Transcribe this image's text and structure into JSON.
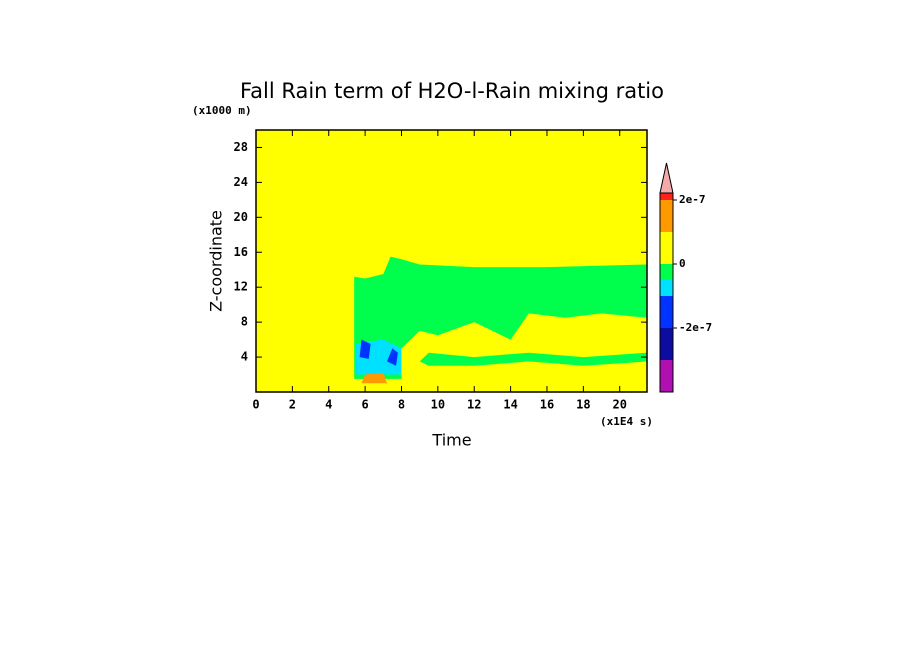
{
  "chart_data": {
    "type": "contour",
    "title": "Fall Rain term of H2O-l-Rain mixing ratio",
    "x_label": "Time",
    "y_label": "Z-coordinate",
    "x_units": "(x1E4 s)",
    "y_units": "(x1000 m)",
    "xlim": [
      0,
      21.5
    ],
    "ylim": [
      0,
      30
    ],
    "xticks": [
      0,
      2,
      4,
      6,
      8,
      10,
      12,
      14,
      16,
      18,
      20
    ],
    "yticks": [
      4,
      8,
      12,
      16,
      20,
      24,
      28
    ],
    "background_band": 5,
    "levels": [
      -3e-07,
      -2e-07,
      -1e-07,
      -5e-08,
      0,
      1e-07,
      2e-07
    ],
    "colors": [
      "#b010b0",
      "#0c0ca0",
      "#0033ff",
      "#00e0ff",
      "#00ff4c",
      "#ffff00",
      "#ff9900",
      "#ff2020"
    ],
    "extend_color": "#f4aaa8",
    "colorbar_ticks": [
      {
        "value": 2e-07,
        "label": "2e-7"
      },
      0,
      {
        "value": -2e-07,
        "label": "-2e-7"
      }
    ],
    "regions": [
      {
        "band": 4,
        "x": [
          5.4,
          5.4,
          6,
          7,
          7.4,
          8,
          9,
          12,
          16,
          21.5,
          21.5,
          19,
          15,
          10,
          8
        ],
        "y": [
          1.5,
          13.2,
          13,
          13.5,
          15.5,
          15.2,
          14.6,
          14.3,
          14.3,
          14.6,
          2,
          2,
          2.5,
          2,
          1.5
        ]
      },
      {
        "band": 5,
        "x": [
          8,
          8,
          9,
          10,
          12,
          14,
          15,
          17,
          19,
          21.5,
          21.5
        ],
        "y": [
          0,
          5,
          7,
          6.5,
          8,
          6,
          9,
          8.5,
          9,
          8.5,
          0
        ]
      },
      {
        "band": 4,
        "x": [
          9,
          9.5,
          12,
          15,
          18,
          21.5,
          21.5,
          18,
          15,
          12,
          9.5
        ],
        "y": [
          3.5,
          4.5,
          4,
          4.5,
          4,
          4.5,
          3.5,
          3,
          3.5,
          3,
          3
        ]
      },
      {
        "band": 3,
        "x": [
          5.5,
          5.5,
          7,
          8,
          8
        ],
        "y": [
          2,
          5.5,
          6,
          5,
          2
        ]
      },
      {
        "band": 2,
        "x": [
          5.7,
          5.8,
          6.3,
          6.2
        ],
        "y": [
          4,
          6,
          5.5,
          3.8
        ]
      },
      {
        "band": 2,
        "x": [
          7.2,
          7.5,
          7.8,
          7.7
        ],
        "y": [
          3.5,
          5,
          4.5,
          3
        ]
      },
      {
        "band": 6,
        "x": [
          5.8,
          6,
          7,
          7.2
        ],
        "y": [
          1,
          2,
          2.2,
          1
        ]
      }
    ]
  }
}
